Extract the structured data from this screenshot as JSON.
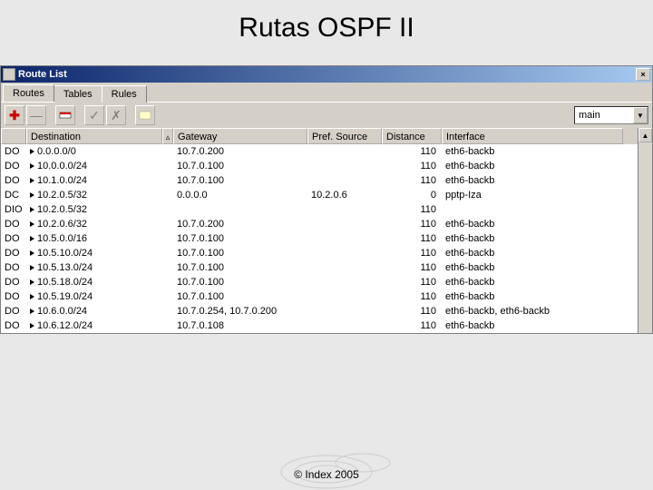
{
  "slide": {
    "title": "Rutas OSPF II",
    "footer": "© Index 2005"
  },
  "window": {
    "title": "Route List",
    "tabs": [
      "Routes",
      "Tables",
      "Rules"
    ],
    "active_tab": 0,
    "combo_value": "main"
  },
  "columns": {
    "flag": "",
    "destination": "Destination",
    "sort": "▵",
    "gateway": "Gateway",
    "prefsource": "Pref. Source",
    "distance": "Distance",
    "interface": "Interface"
  },
  "rows": [
    {
      "flag": "DO",
      "dest": "0.0.0.0/0",
      "gw": "10.7.0.200",
      "src": "",
      "dist": "110",
      "iface": "eth6-backb"
    },
    {
      "flag": "DO",
      "dest": "10.0.0.0/24",
      "gw": "10.7.0.100",
      "src": "",
      "dist": "110",
      "iface": "eth6-backb"
    },
    {
      "flag": "DO",
      "dest": "10.1.0.0/24",
      "gw": "10.7.0.100",
      "src": "",
      "dist": "110",
      "iface": "eth6-backb"
    },
    {
      "flag": "DC",
      "dest": "10.2.0.5/32",
      "gw": "0.0.0.0",
      "src": "10.2.0.6",
      "dist": "0",
      "iface": "pptp-Iza"
    },
    {
      "flag": "DIO",
      "dest": "10.2.0.5/32",
      "gw": "",
      "src": "",
      "dist": "110",
      "iface": ""
    },
    {
      "flag": "DO",
      "dest": "10.2.0.6/32",
      "gw": "10.7.0.200",
      "src": "",
      "dist": "110",
      "iface": "eth6-backb"
    },
    {
      "flag": "DO",
      "dest": "10.5.0.0/16",
      "gw": "10.7.0.100",
      "src": "",
      "dist": "110",
      "iface": "eth6-backb"
    },
    {
      "flag": "DO",
      "dest": "10.5.10.0/24",
      "gw": "10.7.0.100",
      "src": "",
      "dist": "110",
      "iface": "eth6-backb"
    },
    {
      "flag": "DO",
      "dest": "10.5.13.0/24",
      "gw": "10.7.0.100",
      "src": "",
      "dist": "110",
      "iface": "eth6-backb"
    },
    {
      "flag": "DO",
      "dest": "10.5.18.0/24",
      "gw": "10.7.0.100",
      "src": "",
      "dist": "110",
      "iface": "eth6-backb"
    },
    {
      "flag": "DO",
      "dest": "10.5.19.0/24",
      "gw": "10.7.0.100",
      "src": "",
      "dist": "110",
      "iface": "eth6-backb"
    },
    {
      "flag": "DO",
      "dest": "10.6.0.0/24",
      "gw": "10.7.0.254, 10.7.0.200",
      "src": "",
      "dist": "110",
      "iface": "eth6-backb, eth6-backb"
    },
    {
      "flag": "DO",
      "dest": "10.6.12.0/24",
      "gw": "10.7.0.108",
      "src": "",
      "dist": "110",
      "iface": "eth6-backb"
    }
  ],
  "toolbar_icons": {
    "add": "✚",
    "remove": "—",
    "flag": "▭",
    "check": "✓",
    "x": "✗",
    "text": "▭"
  },
  "colors": {
    "titlebar_start": "#0a246a",
    "titlebar_end": "#a6caf0",
    "win_face": "#d4d0c8",
    "bg": "#e8e8e8"
  }
}
